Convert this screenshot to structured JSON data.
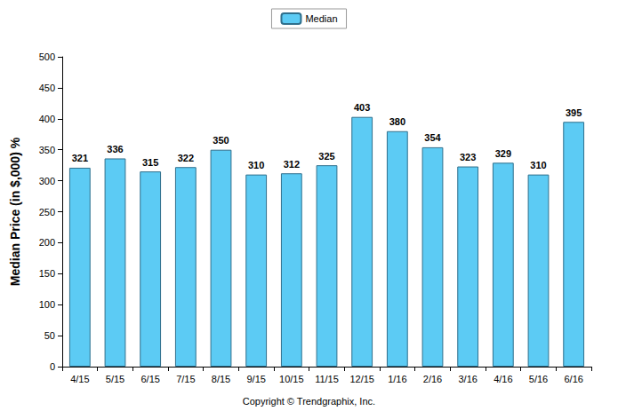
{
  "chart_data": {
    "type": "bar",
    "y_label": "Median Price (in $,000) %",
    "categories": [
      "4/15",
      "5/15",
      "6/15",
      "7/15",
      "8/15",
      "9/15",
      "10/15",
      "11/15",
      "12/15",
      "1/16",
      "2/16",
      "3/16",
      "4/16",
      "5/16",
      "6/16"
    ],
    "series": [
      {
        "name": "Median",
        "color": "#5ccbf4",
        "values": [
          321,
          336,
          315,
          322,
          350,
          310,
          312,
          325,
          403,
          380,
          354,
          323,
          329,
          310,
          395
        ]
      }
    ],
    "ylim": [
      0,
      500
    ],
    "yticks": [
      0,
      50,
      100,
      150,
      200,
      250,
      300,
      350,
      400,
      450,
      500
    ],
    "grid": false,
    "legend": "top",
    "data_labels": true,
    "annotations": [
      "Copyright © Trendgraphix, Inc."
    ]
  }
}
